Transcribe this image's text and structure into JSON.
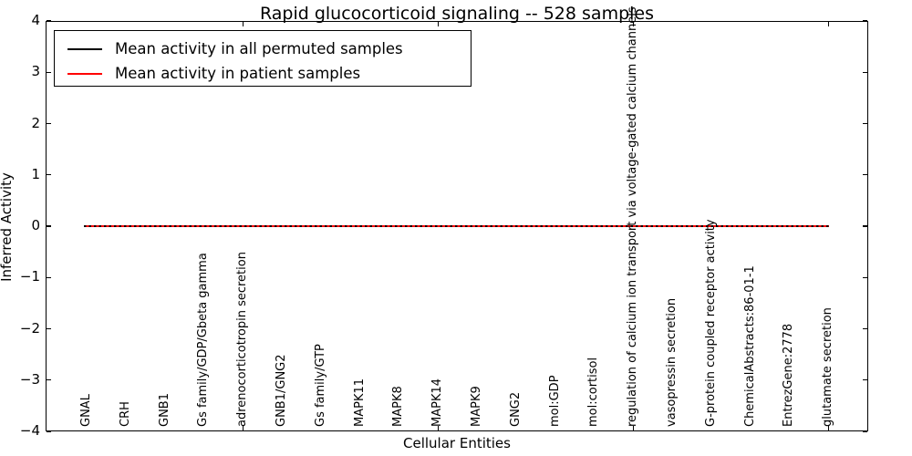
{
  "chart_data": {
    "type": "line",
    "title": "Rapid glucocorticoid signaling -- 528 samples",
    "xlabel": "Cellular Entities",
    "ylabel": "Inferred Activity",
    "ylim": [
      -4,
      4
    ],
    "ytick_values": [
      4,
      3,
      2,
      1,
      0,
      -1,
      -2,
      -3,
      -4
    ],
    "ytick_labels": [
      "4",
      "3",
      "2",
      "1",
      "0",
      "−1",
      "−2",
      "−3",
      "−4"
    ],
    "grid": false,
    "legend_position": "upper left",
    "categories": [
      "GNAL",
      "CRH",
      "GNB1",
      "Gs family/GDP/Gbeta gamma",
      "adrenocorticotropin secretion",
      "GNB1/GNG2",
      "Gs family/GTP",
      "MAPK11",
      "MAPK8",
      "MAPK14",
      "MAPK9",
      "GNG2",
      "mol:GDP",
      "mol:cortisol",
      "regulation of calcium ion transport via voltage-gated calcium channels",
      "vasopressin secretion",
      "G-protein coupled receptor activity",
      "ChemicalAbstracts:86-01-1",
      "EntrezGene:2778",
      "glutamate secretion"
    ],
    "xtick_major_category_indices": [
      4,
      9,
      14,
      19
    ],
    "series": [
      {
        "name": "Mean activity in all permuted samples",
        "color": "#000000",
        "style": "solid",
        "values": [
          0,
          0,
          0,
          0,
          0,
          0,
          0,
          0,
          0,
          0,
          0,
          0,
          0,
          0,
          0,
          0,
          0,
          0,
          0,
          0
        ]
      },
      {
        "name": "Mean activity in patient samples",
        "color": "#ff0000",
        "style": "dashed-overlay",
        "values": [
          0,
          0,
          0,
          0,
          0,
          0,
          0,
          0,
          0,
          0,
          0,
          0,
          0,
          0,
          0,
          0,
          0,
          0,
          0,
          0
        ]
      }
    ]
  }
}
